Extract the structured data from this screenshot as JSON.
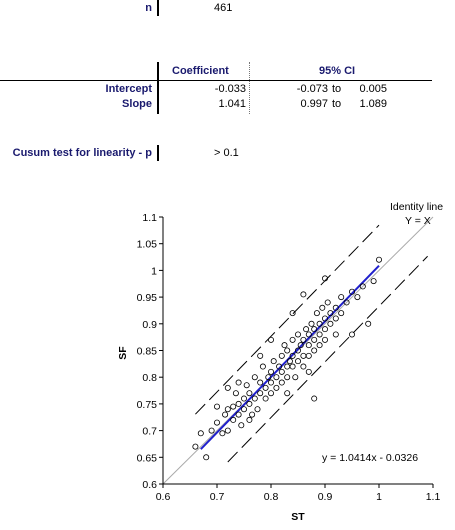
{
  "n_label": "n",
  "n_value": "461",
  "table": {
    "header_coef": "Coefficient",
    "header_ci": "95% CI",
    "rows": [
      {
        "label": "Intercept",
        "coef": "-0.033",
        "ci_low": "-0.073",
        "ci_to": "to",
        "ci_high": "0.005"
      },
      {
        "label": "Slope",
        "coef": "1.041",
        "ci_low": "0.997",
        "ci_to": "to",
        "ci_high": "1.089"
      }
    ]
  },
  "cusum": {
    "label": "Cusum test for linearity - p",
    "value": "> 0.1"
  },
  "colors": {
    "label_navy": "#1a1a6e",
    "regression_line": "#1f1fcc",
    "dashed": "#000000",
    "identity": "#aaaaaa"
  },
  "chart_data": {
    "type": "scatter",
    "xlabel": "ST",
    "ylabel": "SF",
    "xlim": [
      0.6,
      1.1
    ],
    "ylim": [
      0.6,
      1.1
    ],
    "x_ticks": [
      "0.6",
      "0.7",
      "0.8",
      "0.9",
      "1",
      "1.1"
    ],
    "y_ticks": [
      "0.6",
      "0.65",
      "0.7",
      "0.75",
      "0.8",
      "0.85",
      "0.9",
      "0.95",
      "1",
      "1.05",
      "1.1"
    ],
    "identity_label_1": "Identity line",
    "identity_label_2": "Y = X",
    "equation": "y = 1.0414x - 0.0326",
    "regression": {
      "slope": 1.0414,
      "intercept": -0.0326,
      "x_range": [
        0.67,
        1.0
      ]
    },
    "upper_limit": {
      "offset": 0.076,
      "x_range": [
        0.66,
        1.0
      ]
    },
    "lower_limit": {
      "offset": -0.076,
      "x_range": [
        0.72,
        1.09
      ]
    },
    "points": [
      [
        0.66,
        0.67
      ],
      [
        0.67,
        0.695
      ],
      [
        0.69,
        0.7
      ],
      [
        0.7,
        0.745
      ],
      [
        0.7,
        0.715
      ],
      [
        0.71,
        0.695
      ],
      [
        0.715,
        0.73
      ],
      [
        0.72,
        0.74
      ],
      [
        0.72,
        0.7
      ],
      [
        0.73,
        0.745
      ],
      [
        0.73,
        0.72
      ],
      [
        0.735,
        0.77
      ],
      [
        0.74,
        0.75
      ],
      [
        0.74,
        0.73
      ],
      [
        0.745,
        0.71
      ],
      [
        0.75,
        0.76
      ],
      [
        0.75,
        0.74
      ],
      [
        0.755,
        0.785
      ],
      [
        0.76,
        0.75
      ],
      [
        0.76,
        0.77
      ],
      [
        0.765,
        0.73
      ],
      [
        0.77,
        0.8
      ],
      [
        0.77,
        0.76
      ],
      [
        0.775,
        0.74
      ],
      [
        0.78,
        0.79
      ],
      [
        0.78,
        0.77
      ],
      [
        0.785,
        0.82
      ],
      [
        0.79,
        0.78
      ],
      [
        0.79,
        0.76
      ],
      [
        0.795,
        0.8
      ],
      [
        0.8,
        0.81
      ],
      [
        0.8,
        0.79
      ],
      [
        0.8,
        0.77
      ],
      [
        0.805,
        0.83
      ],
      [
        0.81,
        0.8
      ],
      [
        0.81,
        0.78
      ],
      [
        0.815,
        0.82
      ],
      [
        0.82,
        0.81
      ],
      [
        0.82,
        0.79
      ],
      [
        0.82,
        0.84
      ],
      [
        0.825,
        0.86
      ],
      [
        0.83,
        0.82
      ],
      [
        0.83,
        0.8
      ],
      [
        0.83,
        0.85
      ],
      [
        0.835,
        0.83
      ],
      [
        0.84,
        0.84
      ],
      [
        0.84,
        0.82
      ],
      [
        0.84,
        0.87
      ],
      [
        0.845,
        0.8
      ],
      [
        0.85,
        0.85
      ],
      [
        0.85,
        0.83
      ],
      [
        0.85,
        0.88
      ],
      [
        0.855,
        0.86
      ],
      [
        0.86,
        0.84
      ],
      [
        0.86,
        0.87
      ],
      [
        0.86,
        0.82
      ],
      [
        0.865,
        0.89
      ],
      [
        0.87,
        0.86
      ],
      [
        0.87,
        0.88
      ],
      [
        0.87,
        0.84
      ],
      [
        0.875,
        0.9
      ],
      [
        0.88,
        0.87
      ],
      [
        0.88,
        0.89
      ],
      [
        0.88,
        0.85
      ],
      [
        0.885,
        0.92
      ],
      [
        0.89,
        0.88
      ],
      [
        0.89,
        0.9
      ],
      [
        0.89,
        0.86
      ],
      [
        0.895,
        0.93
      ],
      [
        0.9,
        0.89
      ],
      [
        0.9,
        0.91
      ],
      [
        0.9,
        0.87
      ],
      [
        0.905,
        0.94
      ],
      [
        0.91,
        0.9
      ],
      [
        0.91,
        0.92
      ],
      [
        0.92,
        0.93
      ],
      [
        0.92,
        0.91
      ],
      [
        0.93,
        0.95
      ],
      [
        0.93,
        0.92
      ],
      [
        0.94,
        0.94
      ],
      [
        0.95,
        0.96
      ],
      [
        0.96,
        0.95
      ],
      [
        0.97,
        0.97
      ],
      [
        0.99,
        0.98
      ],
      [
        1.0,
        1.02
      ],
      [
        0.98,
        0.9
      ],
      [
        0.95,
        0.88
      ],
      [
        0.88,
        0.76
      ],
      [
        0.84,
        0.92
      ],
      [
        0.8,
        0.87
      ],
      [
        0.78,
        0.84
      ],
      [
        0.86,
        0.955
      ],
      [
        0.72,
        0.78
      ],
      [
        0.9,
        0.985
      ],
      [
        0.68,
        0.65
      ],
      [
        0.83,
        0.77
      ],
      [
        0.74,
        0.79
      ],
      [
        0.87,
        0.81
      ],
      [
        0.92,
        0.88
      ],
      [
        0.76,
        0.72
      ]
    ]
  }
}
